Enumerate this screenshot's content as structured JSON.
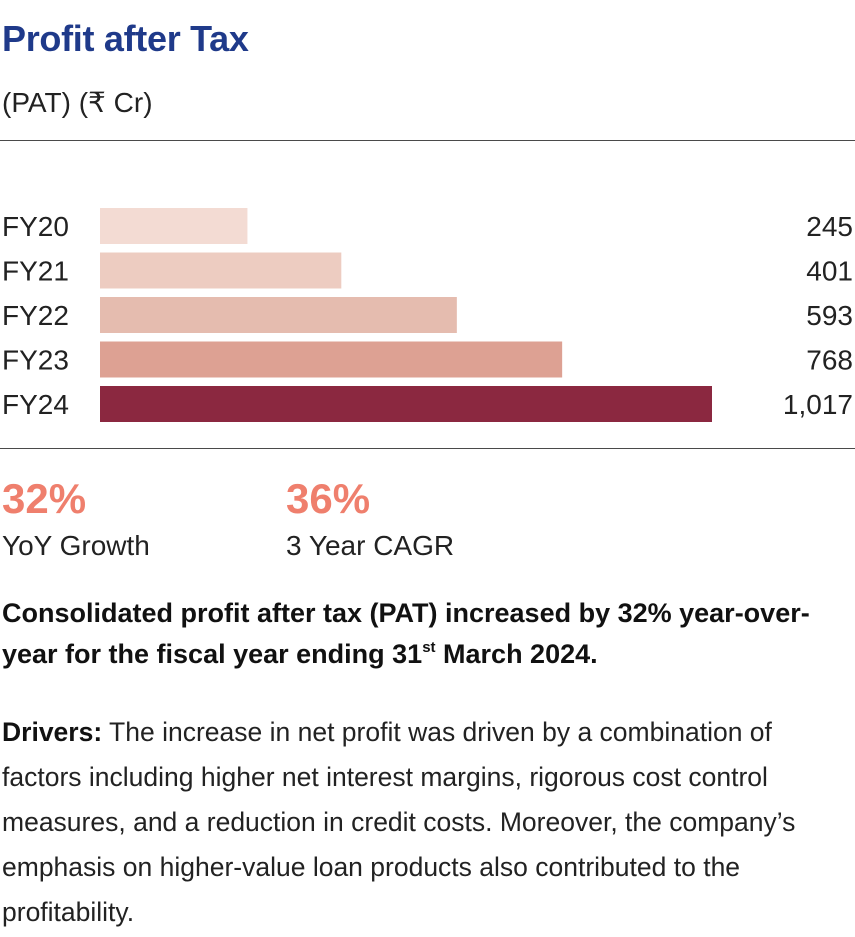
{
  "header": {
    "title": "Profit after Tax",
    "subtitle": "(PAT) (₹ Cr)"
  },
  "chart_data": {
    "type": "bar",
    "orientation": "horizontal",
    "title": "Profit after Tax",
    "subtitle": "(PAT) (₹ Cr)",
    "categories": [
      "FY20",
      "FY21",
      "FY22",
      "FY23",
      "FY24"
    ],
    "values": [
      245,
      401,
      593,
      768,
      1017
    ],
    "value_labels": [
      "245",
      "401",
      "593",
      "768",
      "1,017"
    ],
    "colors": [
      "#f3dbd3",
      "#edccc1",
      "#e5bcaf",
      "#dda193",
      "#8b2840"
    ],
    "grid": false,
    "legend": "none"
  },
  "stats": [
    {
      "value": "32%",
      "label": "YoY Growth"
    },
    {
      "value": "36%",
      "label": "3 Year CAGR"
    }
  ],
  "summary": {
    "lead_before": "Consolidated profit after tax (PAT) increased by 32% year-over-year for the fiscal year ending 31",
    "lead_sup": "st",
    "lead_after": " March 2024.",
    "drivers_label": "Drivers:",
    "drivers_text": " The increase in net profit was driven by a combination of factors including higher net interest margins, rigorous cost control measures, and a reduction in credit costs. Moreover, the company’s emphasis on higher-value loan products also contributed to the profitability."
  }
}
